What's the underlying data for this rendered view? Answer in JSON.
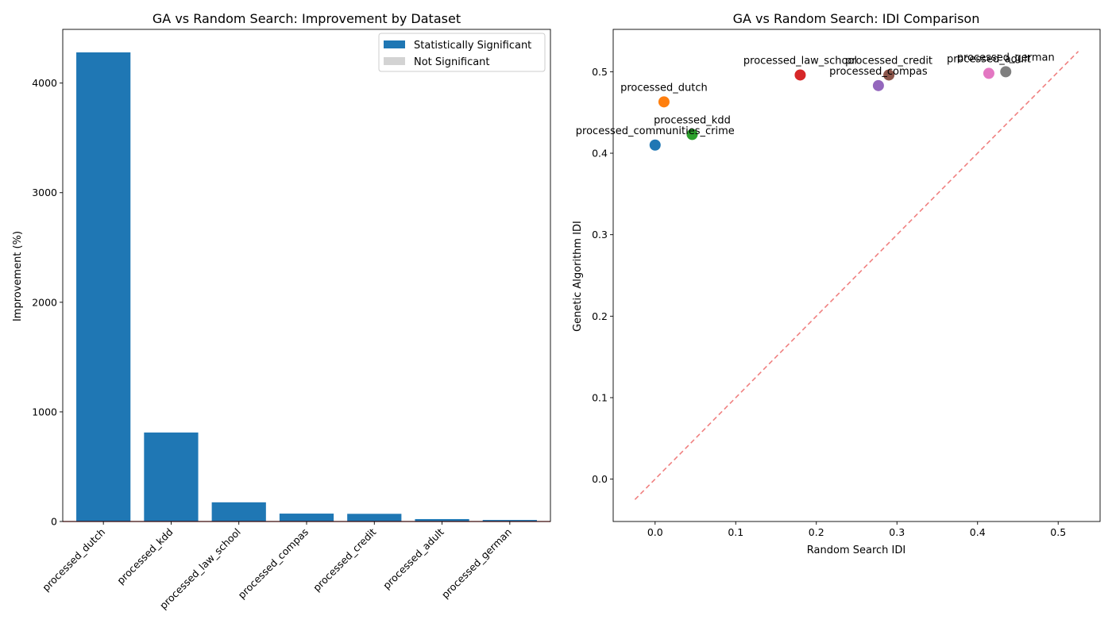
{
  "chart_data": [
    {
      "type": "bar",
      "title": "GA vs Random Search: Improvement by Dataset",
      "xlabel": "",
      "ylabel": "Improvement (%)",
      "categories": [
        "processed_dutch",
        "processed_kdd",
        "processed_law_school",
        "processed_compas",
        "processed_credit",
        "processed_adult",
        "processed_german"
      ],
      "values": [
        4280,
        812,
        175,
        72,
        70,
        22,
        14
      ],
      "significant": [
        true,
        true,
        true,
        true,
        true,
        true,
        true
      ],
      "ylim": [
        0,
        4490
      ],
      "yticks": [
        0,
        1000,
        2000,
        3000,
        4000
      ],
      "reference_line": {
        "y": 0,
        "color": "#d62728"
      },
      "legend": {
        "placement": "top-right",
        "entries": [
          {
            "label": "Statistically Significant",
            "color": "#1f77b4"
          },
          {
            "label": "Not Significant",
            "color": "#d3d3d3"
          }
        ]
      }
    },
    {
      "type": "scatter",
      "title": "GA vs Random Search: IDI Comparison",
      "xlabel": "Random Search IDI",
      "ylabel": "Genetic Algorithm IDI",
      "xlim": [
        -0.052,
        0.552
      ],
      "ylim": [
        -0.052,
        0.552
      ],
      "xticks": [
        "0.0",
        "0.1",
        "0.2",
        "0.3",
        "0.4",
        "0.5"
      ],
      "yticks": [
        "0.0",
        "0.1",
        "0.2",
        "0.3",
        "0.4",
        "0.5"
      ],
      "diagonal": {
        "from": [
          -0.025,
          -0.025
        ],
        "to": [
          0.525,
          0.525
        ],
        "color": "#f08080",
        "style": "dashed"
      },
      "points": [
        {
          "label": "processed_communities_crime",
          "x": 0.0,
          "y": 0.41,
          "color": "#1f77b4"
        },
        {
          "label": "processed_dutch",
          "x": 0.011,
          "y": 0.463,
          "color": "#ff7f0e"
        },
        {
          "label": "processed_kdd",
          "x": 0.046,
          "y": 0.423,
          "color": "#2ca02c"
        },
        {
          "label": "processed_law_school",
          "x": 0.18,
          "y": 0.496,
          "color": "#d62728"
        },
        {
          "label": "processed_compas",
          "x": 0.277,
          "y": 0.483,
          "color": "#9467bd"
        },
        {
          "label": "processed_credit",
          "x": 0.29,
          "y": 0.496,
          "color": "#8c564b"
        },
        {
          "label": "processed_adult",
          "x": 0.414,
          "y": 0.498,
          "color": "#e377c2"
        },
        {
          "label": "processed_german",
          "x": 0.435,
          "y": 0.5,
          "color": "#7f7f7f"
        }
      ]
    }
  ]
}
